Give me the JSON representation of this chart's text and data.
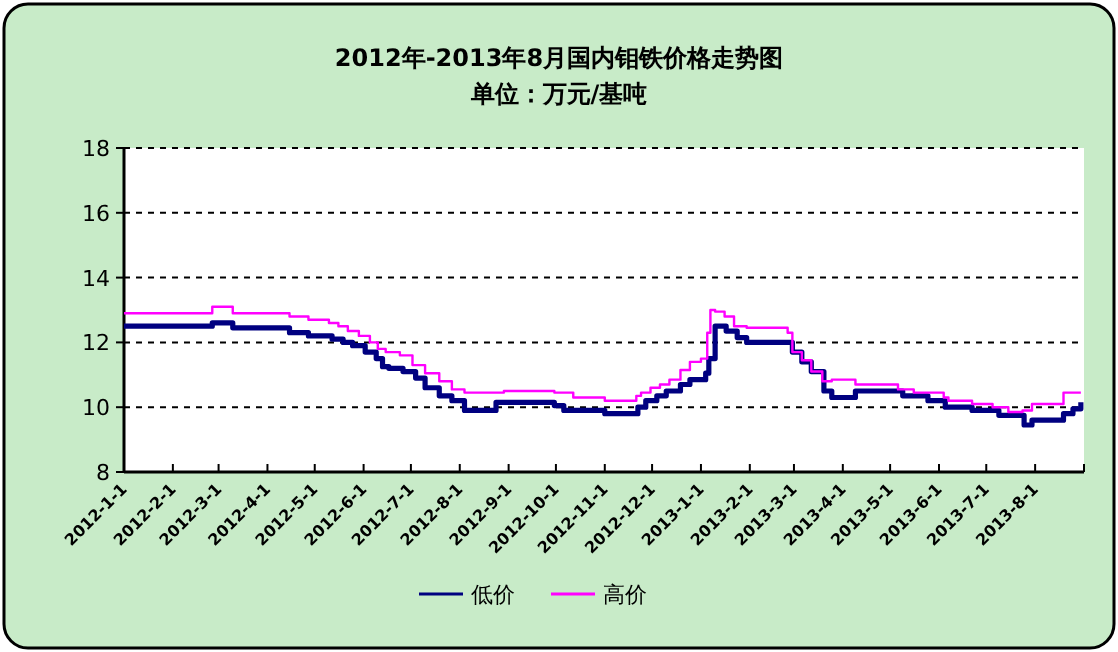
{
  "chart_data": {
    "type": "step",
    "title": "2012年-2013年8月国内钼铁价格走势图",
    "subtitle": "单位：万元/基吨",
    "xlim": [
      "2012-01-01",
      "2013-09-01"
    ],
    "xticks": [
      {
        "value": "2012-01-01",
        "label": "2012-1-1"
      },
      {
        "value": "2012-02-01",
        "label": "2012-2-1"
      },
      {
        "value": "2012-03-01",
        "label": "2012-3-1"
      },
      {
        "value": "2012-04-01",
        "label": "2012-4-1"
      },
      {
        "value": "2012-05-01",
        "label": "2012-5-1"
      },
      {
        "value": "2012-06-01",
        "label": "2012-6-1"
      },
      {
        "value": "2012-07-01",
        "label": "2012-7-1"
      },
      {
        "value": "2012-08-01",
        "label": "2012-8-1"
      },
      {
        "value": "2012-09-01",
        "label": "2012-9-1"
      },
      {
        "value": "2012-10-01",
        "label": "2012-10-1"
      },
      {
        "value": "2012-11-01",
        "label": "2012-11-1"
      },
      {
        "value": "2012-12-01",
        "label": "2012-12-1"
      },
      {
        "value": "2013-01-01",
        "label": "2013-1-1"
      },
      {
        "value": "2013-02-01",
        "label": "2013-2-1"
      },
      {
        "value": "2013-03-01",
        "label": "2013-3-1"
      },
      {
        "value": "2013-04-01",
        "label": "2013-4-1"
      },
      {
        "value": "2013-05-01",
        "label": "2013-5-1"
      },
      {
        "value": "2013-06-01",
        "label": "2013-6-1"
      },
      {
        "value": "2013-07-01",
        "label": "2013-7-1"
      },
      {
        "value": "2013-08-01",
        "label": "2013-8-1"
      },
      {
        "value": "2013-09-01",
        "label": null
      }
    ],
    "ylim": [
      8,
      18
    ],
    "yticks": [
      8,
      10,
      12,
      14,
      16,
      18
    ],
    "grid": "y",
    "legend": "bottom",
    "series": [
      {
        "name": "低价",
        "color": "#000080",
        "x": [
          "2012-01-01",
          "2012-02-26",
          "2012-03-10",
          "2012-04-15",
          "2012-04-27",
          "2012-05-12",
          "2012-05-19",
          "2012-05-25",
          "2012-06-02",
          "2012-06-09",
          "2012-06-13",
          "2012-06-17",
          "2012-06-26",
          "2012-07-04",
          "2012-07-10",
          "2012-07-19",
          "2012-07-27",
          "2012-08-04",
          "2012-08-24",
          "2012-09-30",
          "2012-10-06",
          "2012-11-01",
          "2012-11-22",
          "2012-11-27",
          "2012-12-04",
          "2012-12-10",
          "2012-12-19",
          "2012-12-25",
          "2013-01-04",
          "2013-01-06",
          "2013-01-10",
          "2013-01-17",
          "2013-01-24",
          "2013-01-30",
          "2013-02-28",
          "2013-03-06",
          "2013-03-12",
          "2013-03-20",
          "2013-03-25",
          "2013-04-09",
          "2013-05-09",
          "2013-05-25",
          "2013-06-05",
          "2013-06-22",
          "2013-07-09",
          "2013-07-25",
          "2013-07-30",
          "2013-08-19",
          "2013-08-25",
          "2013-08-30"
        ],
        "values": [
          12.5,
          12.6,
          12.45,
          12.3,
          12.2,
          12.1,
          12.0,
          11.9,
          11.7,
          11.5,
          11.25,
          11.2,
          11.1,
          10.9,
          10.6,
          10.35,
          10.2,
          9.9,
          10.15,
          10.05,
          9.9,
          9.8,
          10.0,
          10.2,
          10.35,
          10.5,
          10.7,
          10.85,
          11.05,
          11.5,
          12.5,
          12.35,
          12.15,
          12.0,
          11.7,
          11.4,
          11.1,
          10.5,
          10.3,
          10.5,
          10.35,
          10.2,
          10.0,
          9.9,
          9.75,
          9.45,
          9.6,
          9.8,
          9.95,
          10.15
        ]
      },
      {
        "name": "高价",
        "color": "#ff00ff",
        "x": [
          "2012-01-01",
          "2012-02-26",
          "2012-03-10",
          "2012-04-15",
          "2012-04-27",
          "2012-05-10",
          "2012-05-16",
          "2012-05-22",
          "2012-05-29",
          "2012-06-05",
          "2012-06-10",
          "2012-06-15",
          "2012-06-24",
          "2012-07-02",
          "2012-07-10",
          "2012-07-19",
          "2012-07-27",
          "2012-08-04",
          "2012-08-29",
          "2012-09-30",
          "2012-10-12",
          "2012-11-01",
          "2012-11-21",
          "2012-11-24",
          "2012-11-30",
          "2012-12-06",
          "2012-12-12",
          "2012-12-19",
          "2012-12-25",
          "2013-01-01",
          "2013-01-05",
          "2013-01-07",
          "2013-01-10",
          "2013-01-16",
          "2013-01-22",
          "2013-01-30",
          "2013-02-25",
          "2013-02-28",
          "2013-03-06",
          "2013-03-12",
          "2013-03-19",
          "2013-03-25",
          "2013-04-09",
          "2013-05-06",
          "2013-05-16",
          "2013-06-04",
          "2013-06-07",
          "2013-06-22",
          "2013-07-05",
          "2013-07-15",
          "2013-07-24",
          "2013-07-30",
          "2013-08-19",
          "2013-08-25",
          "2013-08-30"
        ],
        "values": [
          12.9,
          13.1,
          12.9,
          12.8,
          12.7,
          12.6,
          12.5,
          12.35,
          12.2,
          12.0,
          11.8,
          11.7,
          11.6,
          11.3,
          11.05,
          10.8,
          10.55,
          10.45,
          10.5,
          10.45,
          10.3,
          10.2,
          10.35,
          10.45,
          10.6,
          10.7,
          10.85,
          11.15,
          11.4,
          11.5,
          12.3,
          13.0,
          12.95,
          12.8,
          12.5,
          12.45,
          12.3,
          11.7,
          11.45,
          11.1,
          10.8,
          10.85,
          10.7,
          10.55,
          10.45,
          10.3,
          10.2,
          10.1,
          10.0,
          9.85,
          9.9,
          10.1,
          10.45,
          10.45,
          10.45
        ]
      }
    ]
  }
}
